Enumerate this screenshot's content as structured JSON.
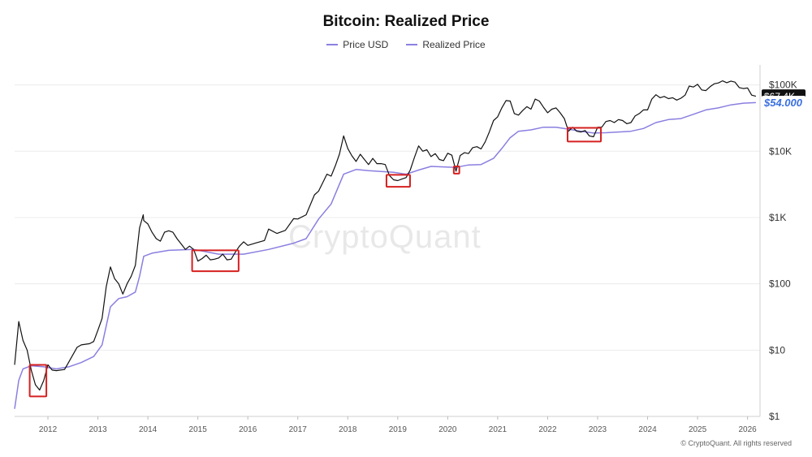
{
  "watermark": "CryptoQuant",
  "copyright": "© CryptoQuant. All rights reserved",
  "chart_data": {
    "type": "line",
    "title": "Bitcoin: Realized Price",
    "xlabel": "",
    "ylabel": "",
    "y_scale": "log",
    "ylim": [
      1,
      200000
    ],
    "xlim": [
      "2011-05",
      "2026-04"
    ],
    "x_ticks": [
      "2012",
      "2013",
      "2014",
      "2015",
      "2016",
      "2017",
      "2018",
      "2019",
      "2020",
      "2021",
      "2022",
      "2023",
      "2024",
      "2025",
      "2026"
    ],
    "y_ticks": [
      {
        "value": 1,
        "label": "$1"
      },
      {
        "value": 10,
        "label": "$10"
      },
      {
        "value": 100,
        "label": "$100"
      },
      {
        "value": 1000,
        "label": "$1K"
      },
      {
        "value": 10000,
        "label": "$10K"
      },
      {
        "value": 100000,
        "label": "$100K"
      }
    ],
    "grid": "horizontal",
    "legend_position": "top-center",
    "series": [
      {
        "name": "Price USD",
        "color": "#111111",
        "points": [
          [
            "2011-05",
            6
          ],
          [
            "2011-06",
            27
          ],
          [
            "2011-07",
            14
          ],
          [
            "2011-08",
            10
          ],
          [
            "2011-09",
            5
          ],
          [
            "2011-10",
            3
          ],
          [
            "2011-11",
            2.5
          ],
          [
            "2011-12",
            3.5
          ],
          [
            "2012-01",
            6
          ],
          [
            "2012-02",
            5
          ],
          [
            "2012-03",
            4.9
          ],
          [
            "2012-05",
            5.1
          ],
          [
            "2012-06",
            6.6
          ],
          [
            "2012-08",
            11
          ],
          [
            "2012-09",
            12
          ],
          [
            "2012-11",
            12.5
          ],
          [
            "2012-12",
            13.5
          ],
          [
            "2013-01",
            20
          ],
          [
            "2013-02",
            30
          ],
          [
            "2013-03",
            90
          ],
          [
            "2013-04",
            180
          ],
          [
            "2013-05",
            120
          ],
          [
            "2013-06",
            100
          ],
          [
            "2013-07",
            70
          ],
          [
            "2013-08",
            100
          ],
          [
            "2013-09",
            130
          ],
          [
            "2013-10",
            190
          ],
          [
            "2013-11",
            700
          ],
          [
            "2013-11-28",
            1100
          ],
          [
            "2013-12",
            900
          ],
          [
            "2014-01",
            800
          ],
          [
            "2014-02",
            600
          ],
          [
            "2014-03",
            480
          ],
          [
            "2014-04",
            440
          ],
          [
            "2014-05",
            600
          ],
          [
            "2014-06",
            630
          ],
          [
            "2014-07",
            600
          ],
          [
            "2014-08",
            480
          ],
          [
            "2014-09",
            400
          ],
          [
            "2014-10",
            330
          ],
          [
            "2014-11",
            370
          ],
          [
            "2014-12",
            330
          ],
          [
            "2015-01",
            220
          ],
          [
            "2015-02",
            240
          ],
          [
            "2015-03",
            270
          ],
          [
            "2015-04",
            230
          ],
          [
            "2015-05",
            235
          ],
          [
            "2015-06",
            245
          ],
          [
            "2015-07",
            280
          ],
          [
            "2015-08",
            230
          ],
          [
            "2015-09",
            235
          ],
          [
            "2015-10",
            300
          ],
          [
            "2015-11",
            370
          ],
          [
            "2015-12",
            430
          ],
          [
            "2016-01",
            380
          ],
          [
            "2016-03",
            415
          ],
          [
            "2016-05",
            450
          ],
          [
            "2016-06",
            670
          ],
          [
            "2016-08",
            575
          ],
          [
            "2016-10",
            640
          ],
          [
            "2016-12",
            960
          ],
          [
            "2017-01",
            950
          ],
          [
            "2017-03",
            1100
          ],
          [
            "2017-05",
            2200
          ],
          [
            "2017-06",
            2500
          ],
          [
            "2017-08",
            4500
          ],
          [
            "2017-09",
            4200
          ],
          [
            "2017-10",
            6000
          ],
          [
            "2017-11",
            9000
          ],
          [
            "2017-12",
            17000
          ],
          [
            "2018-01",
            11000
          ],
          [
            "2018-02",
            8500
          ],
          [
            "2018-03",
            7000
          ],
          [
            "2018-04",
            9000
          ],
          [
            "2018-05",
            7500
          ],
          [
            "2018-06",
            6300
          ],
          [
            "2018-07",
            7800
          ],
          [
            "2018-08",
            6500
          ],
          [
            "2018-09",
            6500
          ],
          [
            "2018-10",
            6300
          ],
          [
            "2018-11",
            4300
          ],
          [
            "2018-12",
            3700
          ],
          [
            "2019-01",
            3600
          ],
          [
            "2019-02",
            3800
          ],
          [
            "2019-03",
            4000
          ],
          [
            "2019-04",
            5200
          ],
          [
            "2019-05",
            8000
          ],
          [
            "2019-06",
            12000
          ],
          [
            "2019-07",
            10000
          ],
          [
            "2019-08",
            10500
          ],
          [
            "2019-09",
            8300
          ],
          [
            "2019-10",
            9200
          ],
          [
            "2019-11",
            7500
          ],
          [
            "2019-12",
            7200
          ],
          [
            "2020-01",
            9300
          ],
          [
            "2020-02",
            8700
          ],
          [
            "2020-03",
            5000
          ],
          [
            "2020-04",
            8600
          ],
          [
            "2020-05",
            9500
          ],
          [
            "2020-06",
            9200
          ],
          [
            "2020-07",
            11300
          ],
          [
            "2020-08",
            11700
          ],
          [
            "2020-09",
            10800
          ],
          [
            "2020-10",
            13800
          ],
          [
            "2020-11",
            19500
          ],
          [
            "2020-12",
            29000
          ],
          [
            "2021-01",
            33000
          ],
          [
            "2021-02",
            45000
          ],
          [
            "2021-03",
            58000
          ],
          [
            "2021-04",
            57000
          ],
          [
            "2021-05",
            37000
          ],
          [
            "2021-06",
            35000
          ],
          [
            "2021-07",
            41000
          ],
          [
            "2021-08",
            47000
          ],
          [
            "2021-09",
            43000
          ],
          [
            "2021-10",
            61000
          ],
          [
            "2021-11",
            57000
          ],
          [
            "2021-12",
            46000
          ],
          [
            "2022-01",
            38000
          ],
          [
            "2022-02",
            43000
          ],
          [
            "2022-03",
            45000
          ],
          [
            "2022-04",
            38000
          ],
          [
            "2022-05",
            31000
          ],
          [
            "2022-06",
            20000
          ],
          [
            "2022-07",
            23000
          ],
          [
            "2022-08",
            20000
          ],
          [
            "2022-09",
            19500
          ],
          [
            "2022-10",
            20500
          ],
          [
            "2022-11",
            17000
          ],
          [
            "2022-12",
            16500
          ],
          [
            "2023-01",
            23000
          ],
          [
            "2023-02",
            23000
          ],
          [
            "2023-03",
            28000
          ],
          [
            "2023-04",
            29000
          ],
          [
            "2023-05",
            27000
          ],
          [
            "2023-06",
            30000
          ],
          [
            "2023-07",
            29000
          ],
          [
            "2023-08",
            26000
          ],
          [
            "2023-09",
            27000
          ],
          [
            "2023-10",
            34000
          ],
          [
            "2023-11",
            37000
          ],
          [
            "2023-12",
            42000
          ],
          [
            "2024-01",
            42000
          ],
          [
            "2024-02",
            61000
          ],
          [
            "2024-03",
            71000
          ],
          [
            "2024-04",
            64000
          ],
          [
            "2024-05",
            67000
          ],
          [
            "2024-06",
            62000
          ],
          [
            "2024-07",
            64000
          ],
          [
            "2024-08",
            59000
          ],
          [
            "2024-09",
            63000
          ],
          [
            "2024-10",
            70000
          ],
          [
            "2024-11",
            96000
          ],
          [
            "2024-12",
            93000
          ],
          [
            "2025-01",
            102000
          ],
          [
            "2025-02",
            84000
          ],
          [
            "2025-03",
            82000
          ],
          [
            "2025-04",
            94000
          ],
          [
            "2025-05",
            104000
          ],
          [
            "2025-06",
            107000
          ],
          [
            "2025-07",
            115000
          ],
          [
            "2025-08",
            108000
          ],
          [
            "2025-09",
            114000
          ],
          [
            "2025-10",
            110000
          ],
          [
            "2025-11",
            91000
          ],
          [
            "2025-12",
            88000
          ],
          [
            "2026-01",
            90000
          ],
          [
            "2026-02",
            70000
          ],
          [
            "2026-03",
            67400
          ]
        ]
      },
      {
        "name": "Realized Price",
        "color": "#8a7fe0",
        "points": [
          [
            "2011-05",
            1.3
          ],
          [
            "2011-06",
            3.5
          ],
          [
            "2011-07",
            5.2
          ],
          [
            "2011-09",
            5.8
          ],
          [
            "2011-12",
            5.6
          ],
          [
            "2012-03",
            5.2
          ],
          [
            "2012-06",
            5.6
          ],
          [
            "2012-09",
            6.5
          ],
          [
            "2012-12",
            8
          ],
          [
            "2013-02",
            12
          ],
          [
            "2013-04",
            45
          ],
          [
            "2013-06",
            60
          ],
          [
            "2013-08",
            64
          ],
          [
            "2013-10",
            75
          ],
          [
            "2013-11",
            130
          ],
          [
            "2013-12",
            260
          ],
          [
            "2014-02",
            290
          ],
          [
            "2014-06",
            320
          ],
          [
            "2014-12",
            330
          ],
          [
            "2015-06",
            280
          ],
          [
            "2015-12",
            280
          ],
          [
            "2016-06",
            330
          ],
          [
            "2016-12",
            410
          ],
          [
            "2017-03",
            480
          ],
          [
            "2017-06",
            950
          ],
          [
            "2017-09",
            1600
          ],
          [
            "2017-12",
            4500
          ],
          [
            "2018-03",
            5300
          ],
          [
            "2018-06",
            5100
          ],
          [
            "2018-12",
            4800
          ],
          [
            "2019-03",
            4500
          ],
          [
            "2019-06",
            5200
          ],
          [
            "2019-09",
            5900
          ],
          [
            "2019-12",
            5800
          ],
          [
            "2020-03",
            5700
          ],
          [
            "2020-06",
            6200
          ],
          [
            "2020-09",
            6300
          ],
          [
            "2020-12",
            7800
          ],
          [
            "2021-02",
            11000
          ],
          [
            "2021-04",
            16000
          ],
          [
            "2021-06",
            20000
          ],
          [
            "2021-09",
            21000
          ],
          [
            "2021-12",
            23000
          ],
          [
            "2022-03",
            23000
          ],
          [
            "2022-06",
            21500
          ],
          [
            "2022-09",
            20000
          ],
          [
            "2022-12",
            18800
          ],
          [
            "2023-03",
            19000
          ],
          [
            "2023-06",
            19500
          ],
          [
            "2023-09",
            20000
          ],
          [
            "2023-12",
            22000
          ],
          [
            "2024-03",
            27000
          ],
          [
            "2024-06",
            30000
          ],
          [
            "2024-09",
            31000
          ],
          [
            "2024-12",
            36000
          ],
          [
            "2025-03",
            42000
          ],
          [
            "2025-06",
            45000
          ],
          [
            "2025-09",
            50000
          ],
          [
            "2025-12",
            53000
          ],
          [
            "2026-03",
            54000
          ]
        ]
      }
    ],
    "highlight_boxes": [
      {
        "x": [
          "2011-08-20",
          "2011-12-20"
        ],
        "y": [
          2,
          6
        ]
      },
      {
        "x": [
          "2014-11-20",
          "2015-10-25"
        ],
        "y": [
          155,
          320
        ]
      },
      {
        "x": [
          "2018-10-10",
          "2019-03-30"
        ],
        "y": [
          2900,
          4400
        ]
      },
      {
        "x": [
          "2020-02-15",
          "2020-03-25"
        ],
        "y": [
          4600,
          5900
        ]
      },
      {
        "x": [
          "2022-05-25",
          "2023-01-25"
        ],
        "y": [
          14000,
          22500
        ]
      }
    ],
    "end_labels": [
      {
        "series": "Price USD",
        "text": "$67.4K",
        "bg": "#111111",
        "fg": "#ffffff"
      },
      {
        "series": "Realized Price",
        "text": "$54.000",
        "bg": "#ffffff",
        "fg": "#3a6fe0"
      }
    ],
    "highlight_color": "#d62020"
  }
}
